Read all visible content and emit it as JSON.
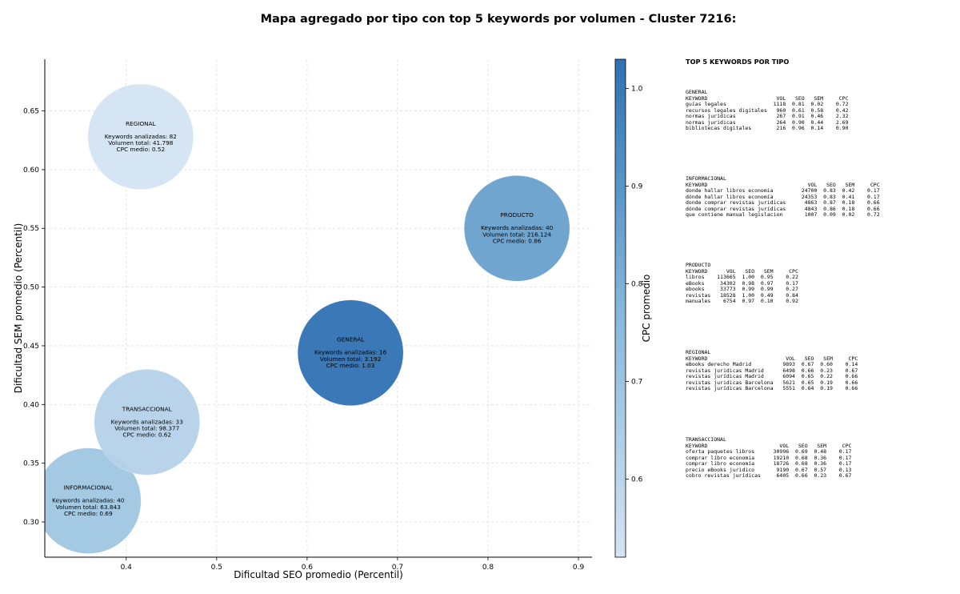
{
  "title": "Mapa agregado por tipo con top 5 keywords por volumen - Cluster 7216:",
  "chart_data": {
    "type": "scatter",
    "subtype": "bubble",
    "xlabel": "Dificultad SEO promedio (Percentil)",
    "ylabel": "Dificultad SEM promedio (Percentil)",
    "xlim": [
      0.31,
      0.915
    ],
    "ylim": [
      0.27,
      0.694
    ],
    "xticks": [
      "0.4",
      "0.5",
      "0.6",
      "0.7",
      "0.8",
      "0.9"
    ],
    "yticks": [
      "0.30",
      "0.35",
      "0.40",
      "0.45",
      "0.50",
      "0.55",
      "0.60",
      "0.65"
    ],
    "grid": true,
    "colorbar": {
      "label": "CPC promedio",
      "range": [
        0.52,
        1.03
      ],
      "ticks": [
        "0.6",
        "0.7",
        "0.8",
        "0.9",
        "1.0"
      ],
      "colormap": [
        "#d4e4f3",
        "#2f71b3"
      ]
    },
    "points": [
      {
        "name": "GENERAL",
        "x": 0.648,
        "y": 0.444,
        "keywords": 16,
        "volume": 3192,
        "cpc": 1.03,
        "label_lines": [
          "Keywords analizadas: 16",
          "Volumen total: 3.192",
          "CPC medio: 1.03"
        ]
      },
      {
        "name": "INFORMACIONAL",
        "x": 0.358,
        "y": 0.318,
        "keywords": 40,
        "volume": 63843,
        "cpc": 0.69,
        "label_lines": [
          "Keywords analizadas: 40",
          "Volumen total: 63.843",
          "CPC medio: 0.69"
        ]
      },
      {
        "name": "PRODUCTO",
        "x": 0.832,
        "y": 0.55,
        "keywords": 40,
        "volume": 216124,
        "cpc": 0.86,
        "label_lines": [
          "Keywords analizadas: 40",
          "Volumen total: 216.124",
          "CPC medio: 0.86"
        ]
      },
      {
        "name": "REGIONAL",
        "x": 0.416,
        "y": 0.628,
        "keywords": 82,
        "volume": 41798,
        "cpc": 0.52,
        "label_lines": [
          "Keywords analizadas: 82",
          "Volumen total: 41.798",
          "CPC medio: 0.52"
        ]
      },
      {
        "name": "TRANSACCIONAL",
        "x": 0.423,
        "y": 0.385,
        "keywords": 33,
        "volume": 98377,
        "cpc": 0.62,
        "label_lines": [
          "Keywords analizadas: 33",
          "Volumen total: 98.377",
          "CPC medio: 0.62"
        ]
      }
    ]
  },
  "panel": {
    "title": "TOP 5 KEYWORDS POR TIPO",
    "blocks": [
      {
        "name": "general",
        "lines": [
          "GENERAL",
          "KEYWORD                      VOL   SEO   SEM     CPC",
          "guías legales               1118  0.81  0.02    0.72",
          "recursos legales digitales   960  0.61  0.58    0.42",
          "normas jurídicas             267  0.91  0.46    2.32",
          "normas juridicas             264  0.90  0.44    2.69",
          "bibliotecas digitales        216  0.96  0.14    0.90"
        ]
      },
      {
        "name": "informacional",
        "lines": [
          "INFORMACIONAL",
          "KEYWORD                                VOL   SEO   SEM     CPC",
          "donde hallar libros economia         24700  0.83  0.42    0.17",
          "dónde hallar libros economía         24353  0.83  0.41    0.17",
          "donde comprar revistas juridicas      4863  0.87  0.18    0.66",
          "dónde comprar revistas jurídicas      4843  0.86  0.18    0.66",
          "que contiene manual legislacion       1007  0.09  0.02    0.72"
        ]
      },
      {
        "name": "producto",
        "lines": [
          "PRODUCTO",
          "KEYWORD      VOL   SEO   SEM     CPC",
          "libros    113665  1.00  0.95    0.22",
          "eBooks     34302  0.98  0.97    0.17",
          "ebooks     33773  0.99  0.99    0.27",
          "revistas   18528  1.00  0.49    0.84",
          "manuales    6754  0.97  0.10    0.92"
        ]
      },
      {
        "name": "regional",
        "lines": [
          "REGIONAL",
          "KEYWORD                         VOL   SEO   SEM     CPC",
          "eBooks derecho Madrid          9893  0.67  0.60    0.14",
          "revistas juridicas Madrid      6498  0.66  0.23    0.67",
          "revistas jurídicas Madrid      6094  0.65  0.22    0.66",
          "revistas juridicas Barcelona   5621  0.65  0.19    0.66",
          "revistas jurídicas Barcelona   5551  0.64  0.19    0.66"
        ]
      },
      {
        "name": "transaccional",
        "lines": [
          "TRANSACCIONAL",
          "KEYWORD                       VOL   SEO   SEM     CPC",
          "oferta paquetes libros      30996  0.69  0.48    0.17",
          "comprar libro economia      19210  0.68  0.36    0.17",
          "comprar libro economía      18726  0.68  0.36    0.17",
          "precio eBooks juridico       9190  0.67  0.57    0.13",
          "cobro revistas jurídicas     6405  0.66  0.23    0.67"
        ]
      }
    ]
  }
}
